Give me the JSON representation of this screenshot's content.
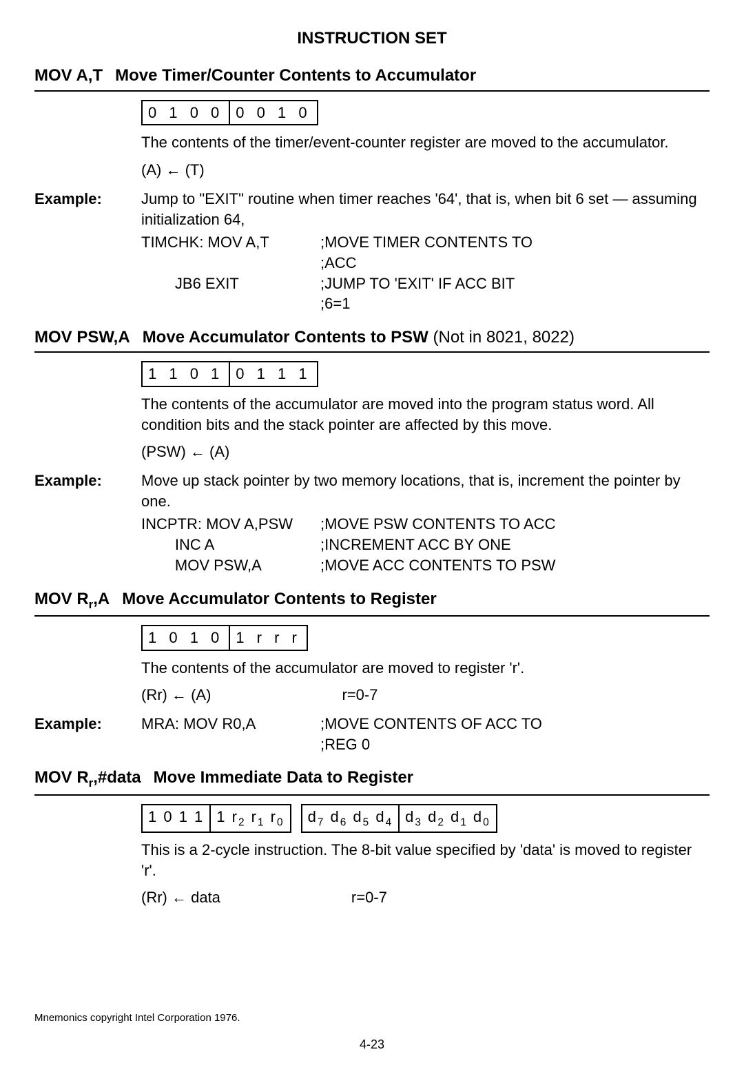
{
  "header": "INSTRUCTION SET",
  "instructions": [
    {
      "mnemonic": "MOV A,T",
      "title": "Move Timer/Counter Contents to Accumulator",
      "note": "",
      "opcodes": [
        {
          "cells": [
            "0 1 0 0",
            "0 0 1 0"
          ],
          "nib": false
        }
      ],
      "description": "The contents of the timer/event-counter register are moved to the accumulator.",
      "operation_left": "(A) ← (T)",
      "operation_right": "",
      "example": {
        "desc": "Jump to \"EXIT\" routine when timer reaches '64', that is, when bit 6 set — assuming initialization 64,",
        "lines": [
          {
            "code": "TIMCHK: MOV A,T",
            "comment": ";MOVE TIMER CONTENTS TO ;ACC"
          },
          {
            "code": "        JB6 EXIT",
            "comment": ";JUMP TO 'EXIT' IF ACC BIT ;6=1"
          }
        ]
      }
    },
    {
      "mnemonic": "MOV PSW,A",
      "title": "Move Accumulator Contents to PSW",
      "note": " (Not in 8021, 8022)",
      "opcodes": [
        {
          "cells": [
            "1 1 0 1",
            "0 1 1 1"
          ],
          "nib": false
        }
      ],
      "description": "The contents of the accumulator are moved into the program status word. All condition bits and the stack pointer are affected by this move.",
      "operation_left": "(PSW) ← (A)",
      "operation_right": "",
      "example": {
        "desc": "Move up stack pointer by two memory locations, that is, increment the pointer by one.",
        "lines": [
          {
            "code": "INCPTR: MOV A,PSW",
            "comment": ";MOVE PSW CONTENTS TO ACC"
          },
          {
            "code": "        INC A",
            "comment": ";INCREMENT ACC BY ONE"
          },
          {
            "code": "        MOV PSW,A",
            "comment": ";MOVE ACC CONTENTS TO PSW"
          }
        ]
      }
    },
    {
      "mnemonic": "MOV R<sub>r</sub>,A",
      "title": "Move Accumulator Contents to Register",
      "note": "",
      "opcodes": [
        {
          "cells": [
            "1 0 1 0",
            "1 r r r"
          ],
          "nib": false
        }
      ],
      "description": "The contents of the accumulator are moved to register 'r'.",
      "operation_left": "(Rr) ← (A)",
      "operation_right": "r=0-7",
      "example": {
        "desc": "",
        "lines": [
          {
            "code": "MRA: MOV R0,A",
            "comment": ";MOVE CONTENTS OF ACC TO ;REG 0"
          }
        ]
      }
    },
    {
      "mnemonic": "MOV R<sub>r</sub>,#data",
      "title": "Move Immediate Data to Register",
      "note": "",
      "opcodes": [
        {
          "cells": [
            "1 0 1 1",
            "1 r<sub>2</sub> r<sub>1</sub> r<sub>0</sub>"
          ],
          "nib": true
        },
        {
          "cells": [
            "d<sub>7</sub> d<sub>6</sub> d<sub>5</sub> d<sub>4</sub>",
            "d<sub>3</sub> d<sub>2</sub> d<sub>1</sub> d<sub>0</sub>"
          ],
          "nib": true
        }
      ],
      "description": "This is a 2-cycle instruction. The 8-bit value specified by 'data' is moved to register 'r'.",
      "operation_left": "(Rr) ← data",
      "operation_right": "r=0-7",
      "example": null
    }
  ],
  "footer": "Mnemonics copyright Intel Corporation 1976.",
  "pagenum": "4-23"
}
